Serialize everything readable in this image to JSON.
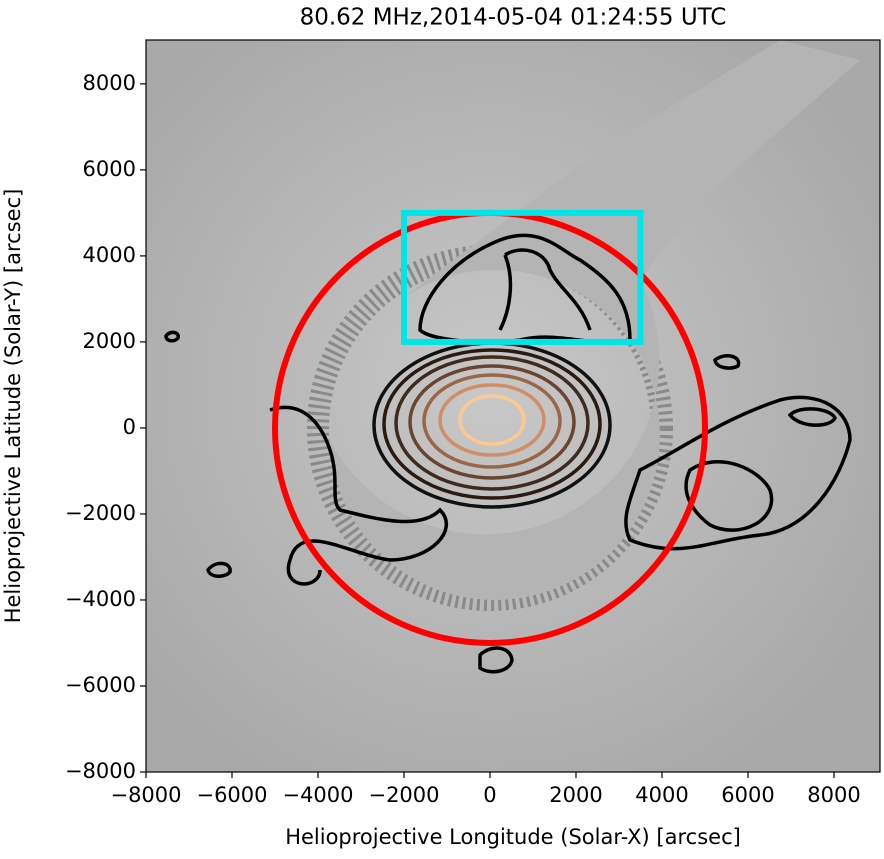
{
  "chart_data": {
    "type": "image",
    "title": "80.62 MHz,2014-05-04 01:24:55 UTC",
    "xlabel": "Helioprojective Longitude (Solar-X) [arcsec]",
    "ylabel": "Helioprojective Latitude (Solar-Y) [arcsec]",
    "xlim": [
      -8000,
      9070
    ],
    "ylim": [
      -8000,
      9020
    ],
    "xticks": [
      {
        "value": -8000,
        "label": "−8000"
      },
      {
        "value": -6000,
        "label": "−6000"
      },
      {
        "value": -4000,
        "label": "−4000"
      },
      {
        "value": -2000,
        "label": "−2000"
      },
      0,
      2000,
      4000,
      6000,
      8000
    ],
    "yticks": [
      {
        "value": -8000,
        "label": "−8000"
      },
      {
        "value": -6000,
        "label": "−6000"
      },
      {
        "value": -4000,
        "label": "−4000"
      },
      {
        "value": -2000,
        "label": "−2000"
      },
      0,
      2000,
      4000,
      6000,
      8000
    ],
    "circle": {
      "x": 0,
      "y": 0,
      "r": 5000,
      "color": "#ff0000"
    },
    "box": {
      "x": [
        -2000,
        3500
      ],
      "y": [
        2000,
        5000
      ],
      "color": "#00e5e5"
    }
  }
}
